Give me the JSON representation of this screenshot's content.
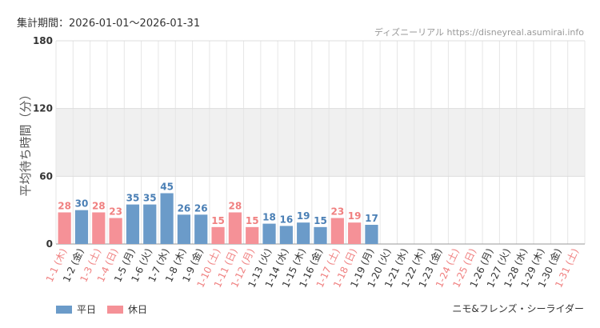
{
  "header": {
    "period_label": "集計期間：2026-01-01〜2026-01-31",
    "site_credit": "ディズニーリアル https://disneyreal.asumirai.info"
  },
  "footer": {
    "attraction_name": "ニモ&フレンズ・シーライダー"
  },
  "legend": {
    "weekday_label": "平日",
    "holiday_label": "休日"
  },
  "colors": {
    "weekday": "#6b9bc9",
    "holiday": "#f59197",
    "band": "#f0f0f0",
    "grid": "#e6e6e6",
    "holiday_text": "#f08080",
    "weekday_value_text": "#4a7fb5"
  },
  "chart_data": {
    "type": "bar",
    "ylabel": "平均待ち時間（分）",
    "xlabel": "",
    "ylim": [
      0,
      180
    ],
    "yticks": [
      0,
      60,
      120,
      180
    ],
    "grid": true,
    "legend_position": "bottom-left",
    "categories": [
      "1-1 (木)",
      "1-2 (金)",
      "1-3 (土)",
      "1-4 (日)",
      "1-5 (月)",
      "1-6 (火)",
      "1-7 (水)",
      "1-8 (木)",
      "1-9 (金)",
      "1-10 (土)",
      "1-11 (日)",
      "1-12 (月)",
      "1-13 (火)",
      "1-14 (水)",
      "1-15 (木)",
      "1-16 (金)",
      "1-17 (土)",
      "1-18 (日)",
      "1-19 (月)",
      "1-20 (火)",
      "1-21 (水)",
      "1-22 (木)",
      "1-23 (金)",
      "1-24 (土)",
      "1-25 (日)",
      "1-26 (月)",
      "1-27 (火)",
      "1-28 (水)",
      "1-29 (木)",
      "1-30 (金)",
      "1-31 (土)"
    ],
    "values": [
      28,
      30,
      28,
      23,
      35,
      35,
      45,
      26,
      26,
      15,
      28,
      15,
      18,
      16,
      19,
      15,
      23,
      19,
      17,
      null,
      null,
      null,
      null,
      null,
      null,
      null,
      null,
      null,
      null,
      null,
      null
    ],
    "holiday": [
      true,
      false,
      true,
      true,
      false,
      false,
      false,
      false,
      false,
      true,
      true,
      true,
      false,
      false,
      false,
      false,
      true,
      true,
      false,
      false,
      false,
      false,
      false,
      true,
      true,
      false,
      false,
      false,
      false,
      false,
      true
    ]
  }
}
